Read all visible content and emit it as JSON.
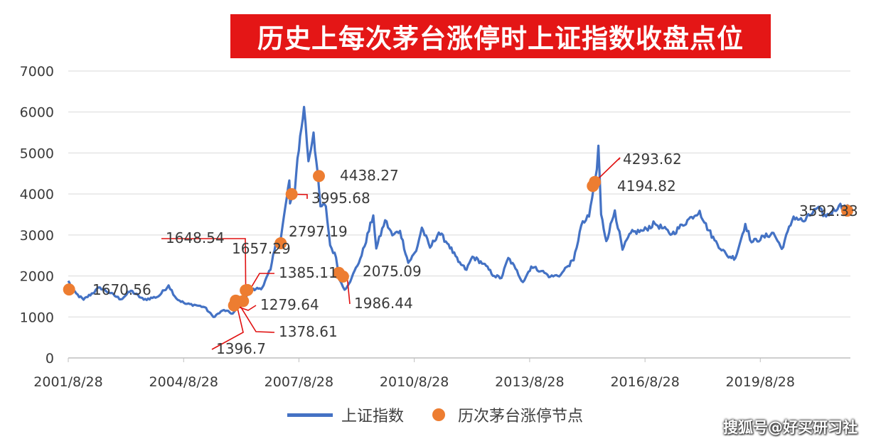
{
  "chart_data": {
    "type": "line",
    "title": "历史上每次茅台涨停时上证指数收盘点位",
    "xlabel": "",
    "ylabel": "",
    "ylim": [
      0,
      7000
    ],
    "yticks": [
      0,
      1000,
      2000,
      3000,
      4000,
      5000,
      6000,
      7000
    ],
    "xticks": [
      "2001/8/28",
      "2004/8/28",
      "2007/8/28",
      "2010/8/28",
      "2013/8/28",
      "2016/8/28",
      "2019/8/28"
    ],
    "xlim": [
      "2001/8/28",
      "2021/12/31"
    ],
    "grid": true,
    "legend_position": "bottom",
    "series": [
      {
        "name": "上证指数",
        "kind": "line",
        "color": "#4472c4",
        "points": [
          [
            "2001-08-28",
            1880
          ],
          [
            "2001-10-15",
            1620
          ],
          [
            "2002-01-20",
            1420
          ],
          [
            "2002-06-25",
            1720
          ],
          [
            "2002-10-01",
            1580
          ],
          [
            "2003-01-10",
            1430
          ],
          [
            "2003-04-15",
            1640
          ],
          [
            "2003-08-15",
            1420
          ],
          [
            "2004-01-01",
            1500
          ],
          [
            "2004-04-07",
            1770
          ],
          [
            "2004-06-20",
            1450
          ],
          [
            "2004-09-15",
            1320
          ],
          [
            "2004-12-20",
            1290
          ],
          [
            "2005-03-15",
            1240
          ],
          [
            "2005-06-06",
            1000
          ],
          [
            "2005-09-15",
            1170
          ],
          [
            "2005-12-06",
            1080
          ],
          [
            "2006-02-15",
            1280
          ],
          [
            "2006-05-15",
            1640
          ],
          [
            "2006-07-15",
            1680
          ],
          [
            "2006-09-15",
            1720
          ],
          [
            "2006-12-01",
            2150
          ],
          [
            "2007-01-20",
            2800
          ],
          [
            "2007-03-01",
            2770
          ],
          [
            "2007-05-29",
            4330
          ],
          [
            "2007-06-05",
            3770
          ],
          [
            "2007-07-20",
            4060
          ],
          [
            "2007-08-15",
            4870
          ],
          [
            "2007-10-16",
            6124
          ],
          [
            "2007-11-27",
            4800
          ],
          [
            "2008-01-14",
            5500
          ],
          [
            "2008-03-20",
            3700
          ],
          [
            "2008-05-10",
            3700
          ],
          [
            "2008-06-20",
            2750
          ],
          [
            "2008-08-15",
            2450
          ],
          [
            "2008-09-18",
            1900
          ],
          [
            "2008-11-04",
            1664
          ],
          [
            "2009-01-10",
            1950
          ],
          [
            "2009-04-15",
            2500
          ],
          [
            "2009-08-04",
            3478
          ],
          [
            "2009-09-01",
            2670
          ],
          [
            "2009-11-24",
            3360
          ],
          [
            "2010-02-01",
            2990
          ],
          [
            "2010-04-15",
            3100
          ],
          [
            "2010-07-02",
            2320
          ],
          [
            "2010-09-15",
            2610
          ],
          [
            "2010-11-08",
            3180
          ],
          [
            "2011-01-25",
            2690
          ],
          [
            "2011-04-18",
            3060
          ],
          [
            "2011-07-20",
            2770
          ],
          [
            "2011-10-21",
            2340
          ],
          [
            "2012-01-06",
            2150
          ],
          [
            "2012-03-02",
            2470
          ],
          [
            "2012-06-15",
            2300
          ],
          [
            "2012-09-26",
            2000
          ],
          [
            "2012-12-03",
            1950
          ],
          [
            "2013-02-06",
            2440
          ],
          [
            "2013-04-15",
            2180
          ],
          [
            "2013-06-25",
            1850
          ],
          [
            "2013-09-12",
            2230
          ],
          [
            "2013-12-20",
            2120
          ],
          [
            "2014-03-12",
            1980
          ],
          [
            "2014-06-20",
            2030
          ],
          [
            "2014-08-15",
            2220
          ],
          [
            "2014-10-20",
            2380
          ],
          [
            "2014-12-31",
            3230
          ],
          [
            "2015-03-15",
            3450
          ],
          [
            "2015-05-28",
            4600
          ],
          [
            "2015-06-12",
            5178
          ],
          [
            "2015-07-08",
            3500
          ],
          [
            "2015-08-26",
            2850
          ],
          [
            "2015-11-15",
            3600
          ],
          [
            "2016-01-27",
            2640
          ],
          [
            "2016-04-15",
            3050
          ],
          [
            "2016-08-15",
            3110
          ],
          [
            "2016-11-29",
            3280
          ],
          [
            "2017-05-11",
            3020
          ],
          [
            "2017-11-14",
            3440
          ],
          [
            "2018-01-29",
            3590
          ],
          [
            "2018-03-15",
            3300
          ],
          [
            "2018-06-20",
            2870
          ],
          [
            "2018-10-18",
            2490
          ],
          [
            "2019-01-04",
            2440
          ],
          [
            "2019-04-08",
            3270
          ],
          [
            "2019-06-06",
            2820
          ],
          [
            "2019-12-31",
            3050
          ],
          [
            "2020-03-19",
            2660
          ],
          [
            "2020-07-09",
            3450
          ],
          [
            "2020-10-15",
            3330
          ],
          [
            "2021-02-18",
            3655
          ],
          [
            "2021-05-15",
            3450
          ],
          [
            "2021-09-13",
            3715
          ],
          [
            "2021-12-31",
            3640
          ]
        ]
      },
      {
        "name": "历次茅台涨停节点",
        "kind": "scatter",
        "color": "#ed7d31",
        "points": [
          {
            "date": "2001-09-05",
            "value": 1670.56,
            "label": "1670.56"
          },
          {
            "date": "2005-12-20",
            "value": 1279.64,
            "label": "1279.64"
          },
          {
            "date": "2006-01-05",
            "value": 1396.7,
            "label": "1396.7"
          },
          {
            "date": "2006-01-20",
            "value": 1378.61,
            "label": "1378.61"
          },
          {
            "date": "2006-03-15",
            "value": 1385.11,
            "label": "1385.11"
          },
          {
            "date": "2006-04-10",
            "value": 1648.54,
            "label": "1648.54"
          },
          {
            "date": "2006-04-25",
            "value": 1657.29,
            "label": "1657.29"
          },
          {
            "date": "2007-03-08",
            "value": 2797.19,
            "label": "2797.19"
          },
          {
            "date": "2007-06-20",
            "value": 3995.68,
            "label": "3995.68"
          },
          {
            "date": "2008-03-05",
            "value": 4438.27,
            "label": "4438.27"
          },
          {
            "date": "2008-09-10",
            "value": 2075.09,
            "label": "2075.09"
          },
          {
            "date": "2008-10-20",
            "value": 1986.44,
            "label": "1986.44"
          },
          {
            "date": "2015-04-20",
            "value": 4194.82,
            "label": "4194.82"
          },
          {
            "date": "2015-05-10",
            "value": 4293.62,
            "label": "4293.62"
          },
          {
            "date": "2021-12-01",
            "value": 3592.33,
            "label": "3592.33"
          }
        ]
      }
    ]
  },
  "legend": {
    "line_label": "上证指数",
    "dot_label": "历次茅台涨停节点"
  },
  "watermark": "搜狐号@好买研习社",
  "colors": {
    "title_bg": "#e41616",
    "line": "#4472c4",
    "dot": "#ed7d31",
    "leader": "#e01010"
  }
}
